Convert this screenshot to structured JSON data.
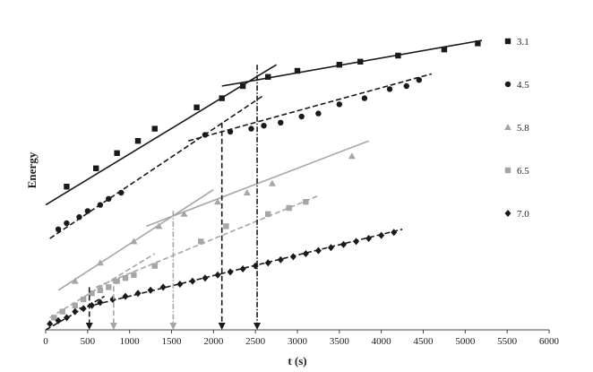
{
  "chart_data": {
    "type": "scatter",
    "title": "",
    "xlabel": "t (s)",
    "ylabel": "Energy",
    "xlim": [
      0,
      6000
    ],
    "ylim": [
      0,
      100
    ],
    "xticks": [
      0,
      500,
      1000,
      1500,
      2000,
      2500,
      3000,
      3500,
      4000,
      4500,
      5000,
      5500,
      6000
    ],
    "grid": false,
    "legend_position": "right",
    "series": [
      {
        "name": "3.1",
        "marker": "square",
        "color": "#1a1a1a",
        "points": [
          [
            250,
            47
          ],
          [
            600,
            53
          ],
          [
            850,
            58
          ],
          [
            1100,
            62
          ],
          [
            1300,
            66
          ],
          [
            1800,
            73
          ],
          [
            2100,
            76
          ],
          [
            2350,
            80
          ],
          [
            2650,
            83
          ],
          [
            3000,
            85
          ],
          [
            3500,
            87
          ],
          [
            3750,
            88
          ],
          [
            4200,
            90
          ],
          [
            4750,
            92
          ],
          [
            5150,
            94
          ]
        ],
        "fits": [
          {
            "x": [
              0,
              2750
            ],
            "y": [
              41,
              87
            ],
            "style": "solid"
          },
          {
            "x": [
              2100,
              5200
            ],
            "y": [
              80,
              95
            ],
            "style": "solid"
          }
        ]
      },
      {
        "name": "4.5",
        "marker": "circle",
        "color": "#1a1a1a",
        "points": [
          [
            150,
            33
          ],
          [
            250,
            35
          ],
          [
            400,
            37
          ],
          [
            500,
            39
          ],
          [
            650,
            41
          ],
          [
            750,
            43
          ],
          [
            900,
            45
          ],
          [
            1900,
            64
          ],
          [
            2200,
            65
          ],
          [
            2450,
            66
          ],
          [
            2600,
            67
          ],
          [
            2800,
            68
          ],
          [
            3050,
            70
          ],
          [
            3250,
            71
          ],
          [
            3500,
            74
          ],
          [
            3800,
            76
          ],
          [
            4100,
            79
          ],
          [
            4300,
            80
          ],
          [
            4450,
            82
          ]
        ],
        "fits": [
          {
            "x": [
              50,
              2600
            ],
            "y": [
              30,
              77
            ],
            "style": "dashed"
          },
          {
            "x": [
              1700,
              4600
            ],
            "y": [
              62,
              84
            ],
            "style": "dashed"
          }
        ]
      },
      {
        "name": "5.8",
        "marker": "triangle",
        "color": "#a6a6a6",
        "points": [
          [
            350,
            16
          ],
          [
            650,
            22
          ],
          [
            1050,
            29
          ],
          [
            1350,
            34
          ],
          [
            1650,
            38
          ],
          [
            2050,
            42
          ],
          [
            2400,
            45
          ],
          [
            2700,
            48
          ],
          [
            3650,
            57
          ]
        ],
        "fits": [
          {
            "x": [
              150,
              2000
            ],
            "y": [
              13,
              46
            ],
            "style": "solid"
          },
          {
            "x": [
              1200,
              3850
            ],
            "y": [
              34,
              62
            ],
            "style": "solid"
          }
        ]
      },
      {
        "name": "6.5",
        "marker": "square",
        "color": "#a6a6a6",
        "points": [
          [
            100,
            4
          ],
          [
            200,
            6
          ],
          [
            350,
            8
          ],
          [
            450,
            10
          ],
          [
            550,
            12
          ],
          [
            650,
            13
          ],
          [
            750,
            14
          ],
          [
            850,
            16
          ],
          [
            950,
            17
          ],
          [
            1050,
            18
          ],
          [
            1300,
            21
          ],
          [
            1850,
            29
          ],
          [
            2150,
            34
          ],
          [
            2650,
            38
          ],
          [
            2900,
            40
          ],
          [
            3100,
            42
          ]
        ],
        "fits": [
          {
            "x": [
              50,
              1300
            ],
            "y": [
              4,
              25
            ],
            "style": "dashed"
          },
          {
            "x": [
              600,
              3250
            ],
            "y": [
              14,
              44
            ],
            "style": "dashed"
          }
        ]
      },
      {
        "name": "7.0",
        "marker": "diamond",
        "color": "#1a1a1a",
        "points": [
          [
            50,
            2
          ],
          [
            150,
            3
          ],
          [
            250,
            4
          ],
          [
            350,
            6
          ],
          [
            450,
            7
          ],
          [
            550,
            8
          ],
          [
            650,
            9
          ],
          [
            800,
            10
          ],
          [
            950,
            11
          ],
          [
            1100,
            12
          ],
          [
            1250,
            13
          ],
          [
            1400,
            14
          ],
          [
            1600,
            15
          ],
          [
            1750,
            16
          ],
          [
            1900,
            17
          ],
          [
            2050,
            18
          ],
          [
            2200,
            19
          ],
          [
            2350,
            20
          ],
          [
            2500,
            21
          ],
          [
            2650,
            22
          ],
          [
            2800,
            23
          ],
          [
            2950,
            24
          ],
          [
            3100,
            25
          ],
          [
            3250,
            26
          ],
          [
            3400,
            27
          ],
          [
            3550,
            28
          ],
          [
            3700,
            29
          ],
          [
            3850,
            30
          ],
          [
            4000,
            31
          ],
          [
            4150,
            32
          ]
        ],
        "fits": [
          {
            "x": [
              0,
              700
            ],
            "y": [
              0,
              11
            ],
            "style": "dashed"
          },
          {
            "x": [
              400,
              4250
            ],
            "y": [
              7,
              33
            ],
            "style": "dashed"
          }
        ]
      }
    ],
    "markers_down": [
      {
        "x": 520,
        "y_from": 14,
        "style": "dashed",
        "color": "#1a1a1a"
      },
      {
        "x": 810,
        "y_from": 17,
        "style": "dashed",
        "color": "#a6a6a6"
      },
      {
        "x": 1520,
        "y_from": 39,
        "style": "dashdot",
        "color": "#a6a6a6"
      },
      {
        "x": 2100,
        "y_from": 68,
        "style": "dashed",
        "color": "#1a1a1a"
      },
      {
        "x": 2520,
        "y_from": 87,
        "style": "dashdot",
        "color": "#1a1a1a"
      }
    ]
  }
}
